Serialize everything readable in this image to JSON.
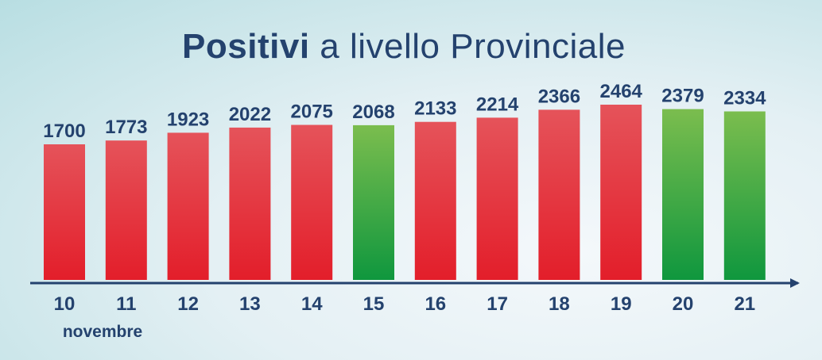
{
  "chart_data": {
    "type": "bar",
    "title_bold": "Positivi",
    "title_rest": " a livello Provinciale",
    "categories": [
      "10",
      "11",
      "12",
      "13",
      "14",
      "15",
      "16",
      "17",
      "18",
      "19",
      "20",
      "21"
    ],
    "values": [
      1700,
      1773,
      1923,
      2022,
      2075,
      2068,
      2133,
      2214,
      2366,
      2464,
      2379,
      2334
    ],
    "trend": [
      "up",
      "up",
      "up",
      "up",
      "up",
      "down",
      "up",
      "up",
      "up",
      "up",
      "down",
      "down"
    ],
    "x_sublabel": "novembre",
    "xlabel": "",
    "ylabel": "",
    "ylim": [
      0,
      2464
    ],
    "grid": false,
    "legend": "none"
  },
  "colors": {
    "up_top": "#e5535a",
    "up_bottom": "#e31e2a",
    "down_top": "#7bbd4e",
    "down_bottom": "#0f973e",
    "text": "#24426e",
    "axis": "#24426e"
  }
}
